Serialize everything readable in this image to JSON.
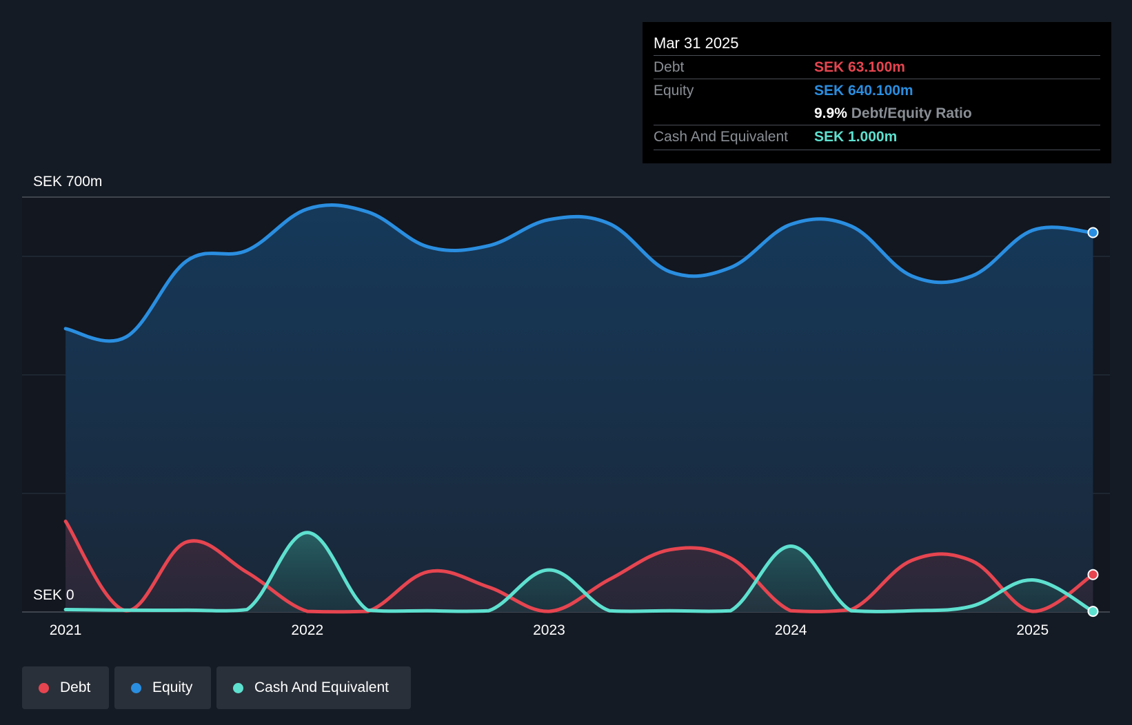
{
  "chart_data": {
    "type": "area",
    "y_top_label": "SEK 700m",
    "y_bottom_label": "SEK 0",
    "ylim": [
      0,
      700
    ],
    "grid": true,
    "x_tick_labels": [
      "2021",
      "2022",
      "2023",
      "2024",
      "2025"
    ],
    "x_ticks": [
      2021.0,
      2022.0,
      2023.0,
      2024.0,
      2025.0
    ],
    "xlim": [
      2020.82,
      2025.32
    ],
    "series": [
      {
        "name": "Debt",
        "color": "#e64550",
        "x": [
          2021.0,
          2021.25,
          2021.5,
          2021.75,
          2022.0,
          2022.25,
          2022.5,
          2022.75,
          2023.0,
          2023.25,
          2023.5,
          2023.75,
          2024.0,
          2024.25,
          2024.5,
          2024.75,
          2025.0,
          2025.25
        ],
        "values": [
          153,
          2,
          118,
          67,
          1,
          1,
          68,
          42,
          1,
          55,
          105,
          91,
          2,
          4,
          87,
          86,
          1,
          63.1
        ]
      },
      {
        "name": "Equity",
        "color": "#2a8ee0",
        "x": [
          2021.0,
          2021.25,
          2021.5,
          2021.75,
          2022.0,
          2022.25,
          2022.5,
          2022.75,
          2023.0,
          2023.25,
          2023.5,
          2023.75,
          2024.0,
          2024.25,
          2024.5,
          2024.75,
          2025.0,
          2025.25
        ],
        "values": [
          478,
          464,
          592,
          610,
          680,
          675,
          616,
          618,
          662,
          655,
          574,
          581,
          654,
          651,
          567,
          567,
          644,
          640.1
        ]
      },
      {
        "name": "Cash And Equivalent",
        "color": "#5ee0cf",
        "x": [
          2021.0,
          2021.25,
          2021.5,
          2021.75,
          2022.0,
          2022.25,
          2022.5,
          2022.75,
          2023.0,
          2023.25,
          2023.5,
          2023.75,
          2024.0,
          2024.25,
          2024.5,
          2024.75,
          2025.0,
          2025.25
        ],
        "values": [
          4,
          3,
          3,
          4,
          134,
          3,
          2,
          2,
          71,
          2,
          2,
          2,
          111,
          2,
          2,
          10,
          54,
          1.0
        ]
      }
    ]
  },
  "tooltip": {
    "date": "Mar 31 2025",
    "debt_label": "Debt",
    "debt_value": "SEK 63.100m",
    "equity_label": "Equity",
    "equity_value": "SEK 640.100m",
    "ratio_value": "9.9%",
    "ratio_label": "Debt/Equity Ratio",
    "cash_label": "Cash And Equivalent",
    "cash_value": "SEK 1.000m"
  },
  "legend": {
    "items": [
      {
        "label": "Debt",
        "color": "#e64550"
      },
      {
        "label": "Equity",
        "color": "#2a8ee0"
      },
      {
        "label": "Cash And Equivalent",
        "color": "#5ee0cf"
      }
    ]
  }
}
